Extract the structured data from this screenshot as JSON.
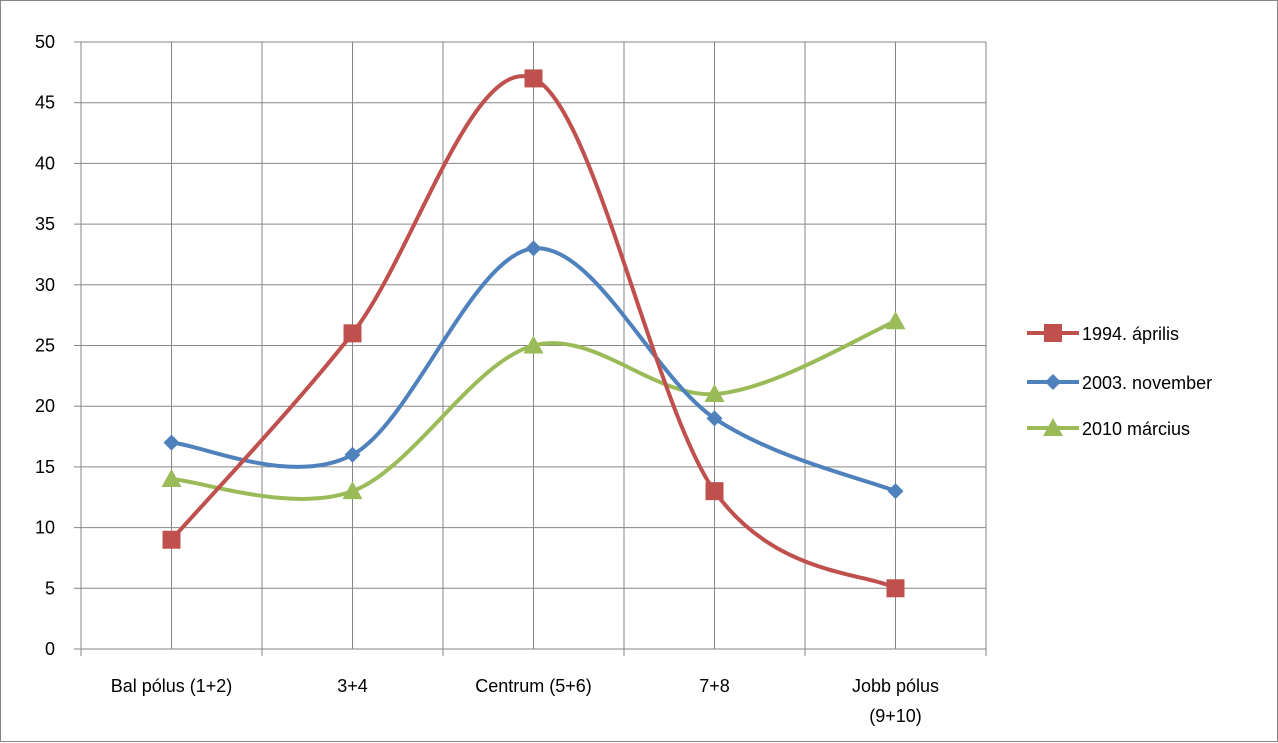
{
  "chart_data": {
    "type": "line",
    "smooth": true,
    "categories": [
      [
        "Bal pólus (1+2)"
      ],
      [
        "3+4"
      ],
      [
        "Centrum (5+6)"
      ],
      [
        "7+8"
      ],
      [
        "Jobb pólus",
        "(9+10)"
      ]
    ],
    "ylim": [
      0,
      50
    ],
    "yticks": [
      0,
      5,
      10,
      15,
      20,
      25,
      30,
      35,
      40,
      45,
      50
    ],
    "grid": true,
    "legend_position": "right",
    "series": [
      {
        "name": "1994. április",
        "color": "#c0504d",
        "marker": "square",
        "values": [
          9,
          26,
          47,
          13,
          5
        ]
      },
      {
        "name": "2003. november",
        "color": "#4f81bd",
        "marker": "diamond",
        "values": [
          17,
          16,
          33,
          19,
          13
        ]
      },
      {
        "name": "2010 március",
        "color": "#9bbb59",
        "marker": "triangle",
        "values": [
          14,
          13,
          25,
          21,
          27
        ]
      }
    ]
  }
}
